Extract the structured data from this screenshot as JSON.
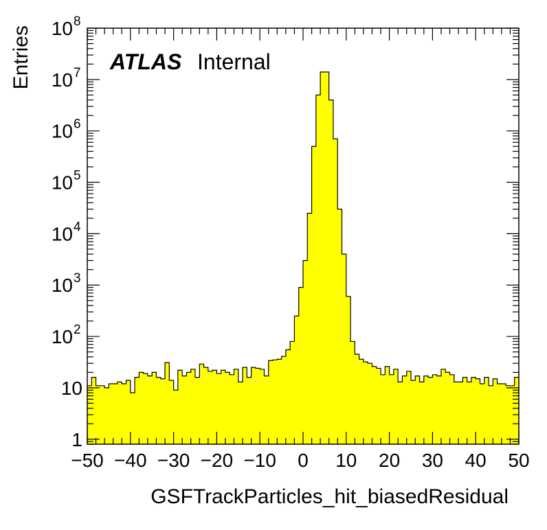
{
  "chart_data": {
    "type": "bar",
    "xlabel": "GSFTrackParticles_hit_biasedResidual",
    "ylabel": "Entries",
    "xlim": [
      -50,
      50
    ],
    "ylim": [
      0.8,
      100000000
    ],
    "y_scale": "log",
    "grid": false,
    "fill_color": "#ffff00",
    "edge_color": "#000000",
    "annotation": {
      "experiment": "ATLAS",
      "status": "Internal"
    },
    "x_ticks": [
      {
        "value": -50,
        "label": "−50"
      },
      {
        "value": -40,
        "label": "−40"
      },
      {
        "value": -30,
        "label": "−30"
      },
      {
        "value": -20,
        "label": "−20"
      },
      {
        "value": -10,
        "label": "−10"
      },
      {
        "value": 0,
        "label": "0"
      },
      {
        "value": 10,
        "label": "10"
      },
      {
        "value": 20,
        "label": "20"
      },
      {
        "value": 30,
        "label": "30"
      },
      {
        "value": 40,
        "label": "40"
      },
      {
        "value": 50,
        "label": "50"
      }
    ],
    "y_ticks": [
      {
        "value": 1,
        "base": "1",
        "exp": ""
      },
      {
        "value": 10,
        "base": "10",
        "exp": ""
      },
      {
        "value": 100,
        "base": "10",
        "exp": "2"
      },
      {
        "value": 1000,
        "base": "10",
        "exp": "3"
      },
      {
        "value": 10000,
        "base": "10",
        "exp": "4"
      },
      {
        "value": 100000,
        "base": "10",
        "exp": "5"
      },
      {
        "value": 1000000,
        "base": "10",
        "exp": "6"
      },
      {
        "value": 10000000,
        "base": "10",
        "exp": "7"
      },
      {
        "value": 100000000,
        "base": "10",
        "exp": "8"
      }
    ],
    "bin_edges_start": -50,
    "bin_width": 1,
    "values": [
      11,
      16,
      11,
      11,
      10,
      12,
      12,
      13,
      12,
      14,
      8,
      16,
      20,
      19,
      17,
      20,
      16,
      15,
      31,
      14,
      9,
      22,
      17,
      20,
      23,
      16,
      29,
      25,
      21,
      22,
      19,
      22,
      20,
      18,
      23,
      13,
      25,
      16,
      25,
      24,
      23,
      17,
      34,
      35,
      36,
      41,
      55,
      80,
      250,
      900,
      3000,
      25000,
      500000,
      5000000,
      14000000,
      14000000,
      4000000,
      700000,
      30000,
      4000,
      600,
      80,
      45,
      36,
      32,
      30,
      26,
      24,
      18,
      26,
      18,
      23,
      13,
      17,
      21,
      14,
      17,
      13,
      17,
      16,
      18,
      17,
      23,
      20,
      18,
      13,
      13,
      16,
      13,
      16,
      15,
      12,
      16,
      11,
      15,
      12,
      12,
      11,
      11,
      16
    ]
  }
}
